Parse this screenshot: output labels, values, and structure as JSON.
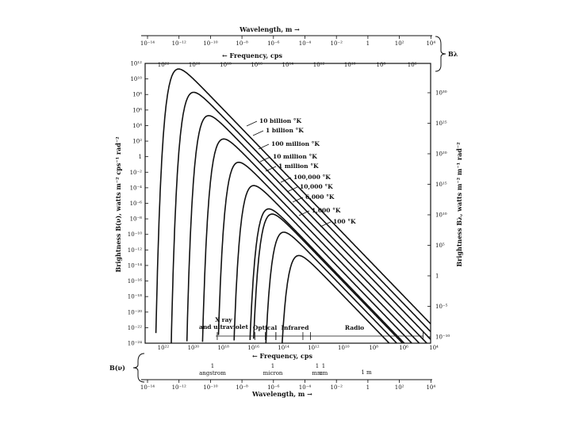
{
  "chart_data": {
    "type": "line",
    "title": "",
    "top_axis": {
      "wavelength_label": "Wavelength, m →",
      "wavelength_ticks": [
        "10⁻¹⁴",
        "10⁻¹²",
        "10⁻¹⁰",
        "10⁻⁸",
        "10⁻⁶",
        "10⁻⁴",
        "10⁻²",
        "1",
        "10²",
        "10⁴"
      ],
      "frequency_label": "← Frequency, cps",
      "frequency_ticks": [
        "10²²",
        "10²⁰",
        "10¹⁸",
        "10¹⁶",
        "10¹⁴",
        "10¹²",
        "10¹⁰",
        "10⁸",
        "10⁶"
      ],
      "bracket_label": "Bλ"
    },
    "bottom_axis": {
      "frequency_label": "← Frequency, cps",
      "frequency_ticks": [
        "10²²",
        "10²⁰",
        "10¹⁸",
        "10¹⁶",
        "10¹⁴",
        "10¹²",
        "10¹⁰",
        "10⁸",
        "10⁶",
        "10⁴"
      ],
      "units": [
        "1 angstrom",
        "1 micron",
        "1 mm",
        "1 cm",
        "1 m"
      ],
      "wavelength_label": "Wavelength, m →",
      "wavelength_ticks": [
        "10⁻¹⁴",
        "10⁻¹²",
        "10⁻¹⁰",
        "10⁻⁸",
        "10⁻⁶",
        "10⁻⁴",
        "10⁻²",
        "1",
        "10²",
        "10⁴"
      ],
      "bracket_label": "B(ν)"
    },
    "left_axis": {
      "label": "Brightness B(ν), watts m⁻² cps⁻¹ rad⁻²",
      "ticks": [
        "10¹²",
        "10¹⁰",
        "10⁸",
        "10⁶",
        "10⁴",
        "10²",
        "1",
        "10⁻²",
        "10⁻⁴",
        "10⁻⁶",
        "10⁻⁸",
        "10⁻¹⁰",
        "10⁻¹²",
        "10⁻¹⁴",
        "10⁻¹⁶",
        "10⁻¹⁸",
        "10⁻²⁰",
        "10⁻²²",
        "10⁻²⁴"
      ]
    },
    "right_axis": {
      "label": "Brightness Bλ, watts m⁻² m⁻¹ rad⁻²",
      "ticks": [
        "10³⁰",
        "10²⁵",
        "10²⁰",
        "10¹⁵",
        "10¹⁰",
        "10⁵",
        "1",
        "10⁻⁵",
        "10⁻¹⁰"
      ]
    },
    "xlim": [
      23,
      4
    ],
    "ylim": [
      -24,
      12
    ],
    "series": [
      {
        "name": "10 billion °K",
        "log_temperature": 10
      },
      {
        "name": "1 billion °K",
        "log_temperature": 9
      },
      {
        "name": "100 million °K",
        "log_temperature": 8
      },
      {
        "name": "10 million °K",
        "log_temperature": 7
      },
      {
        "name": "1 million °K",
        "log_temperature": 6
      },
      {
        "name": "100,000 °K",
        "log_temperature": 5
      },
      {
        "name": "10,000 °K",
        "log_temperature": 4
      },
      {
        "name": "6,000 °K",
        "log_temperature": 3.778
      },
      {
        "name": "1,000 °K",
        "log_temperature": 3
      },
      {
        "name": "100 °K",
        "log_temperature": 2
      }
    ],
    "regions": [
      {
        "name": "X ray and ultraviolet",
        "freq_from": 18.2,
        "freq_to": 15.7
      },
      {
        "name": "Optical",
        "freq_from": 15.0,
        "freq_to": 14.3
      },
      {
        "name": "Infrared",
        "freq_from": 14.3,
        "freq_to": 12.5
      },
      {
        "name": "Radio",
        "freq_from": 12.0,
        "freq_to": 4.5
      }
    ],
    "grid": false,
    "legend": "inline labels"
  }
}
